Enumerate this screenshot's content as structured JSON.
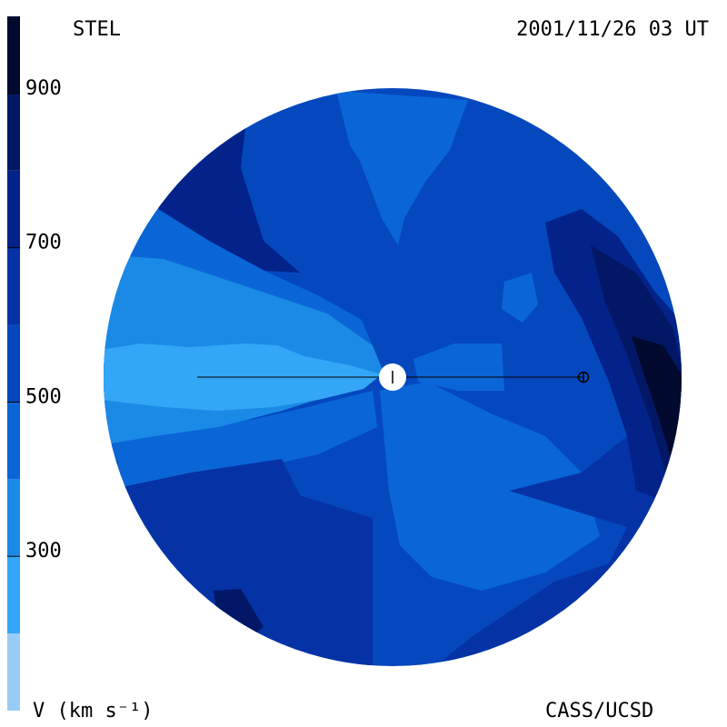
{
  "header": {
    "source": "STEL",
    "datetime": "2001/11/26 03 UT"
  },
  "footer": {
    "units_label": "V (km s⁻¹)",
    "credit": "CASS/UCSD"
  },
  "colorbar": {
    "min": 100,
    "max": 1000,
    "tick_labels": [
      "900",
      "700",
      "500",
      "300"
    ],
    "tick_values": [
      900,
      700,
      500,
      300
    ],
    "levels": [
      {
        "from": 100,
        "to": 200,
        "color": "#99ccf5"
      },
      {
        "from": 200,
        "to": 300,
        "color": "#33a6f5"
      },
      {
        "from": 300,
        "to": 400,
        "color": "#1a8ae6"
      },
      {
        "from": 400,
        "to": 500,
        "color": "#0a66d6"
      },
      {
        "from": 500,
        "to": 600,
        "color": "#0548be"
      },
      {
        "from": 600,
        "to": 700,
        "color": "#0533a6"
      },
      {
        "from": 700,
        "to": 800,
        "color": "#03238a"
      },
      {
        "from": 800,
        "to": 900,
        "color": "#021866"
      },
      {
        "from": 900,
        "to": 1000,
        "color": "#010a2e"
      }
    ]
  },
  "map": {
    "background_color": "#0548be",
    "sun_color": "#ffffff"
  }
}
